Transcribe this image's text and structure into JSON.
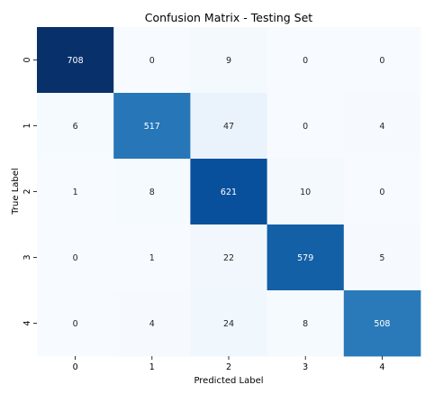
{
  "chart_data": {
    "type": "heatmap",
    "title": "Confusion Matrix - Testing Set",
    "xlabel": "Predicted Label",
    "ylabel": "True Label",
    "x_categories": [
      "0",
      "1",
      "2",
      "3",
      "4"
    ],
    "y_categories": [
      "0",
      "1",
      "2",
      "3",
      "4"
    ],
    "values": [
      [
        708,
        0,
        9,
        0,
        0
      ],
      [
        6,
        517,
        47,
        0,
        4
      ],
      [
        1,
        8,
        621,
        10,
        0
      ],
      [
        0,
        1,
        22,
        579,
        5
      ],
      [
        0,
        4,
        24,
        8,
        508
      ]
    ],
    "colormap": "Blues",
    "colorbar": false,
    "grid": false,
    "colors": {
      "low": "#f7fbff",
      "high": "#08306b",
      "text_dark": "#262626",
      "text_light": "#ffffff"
    }
  }
}
